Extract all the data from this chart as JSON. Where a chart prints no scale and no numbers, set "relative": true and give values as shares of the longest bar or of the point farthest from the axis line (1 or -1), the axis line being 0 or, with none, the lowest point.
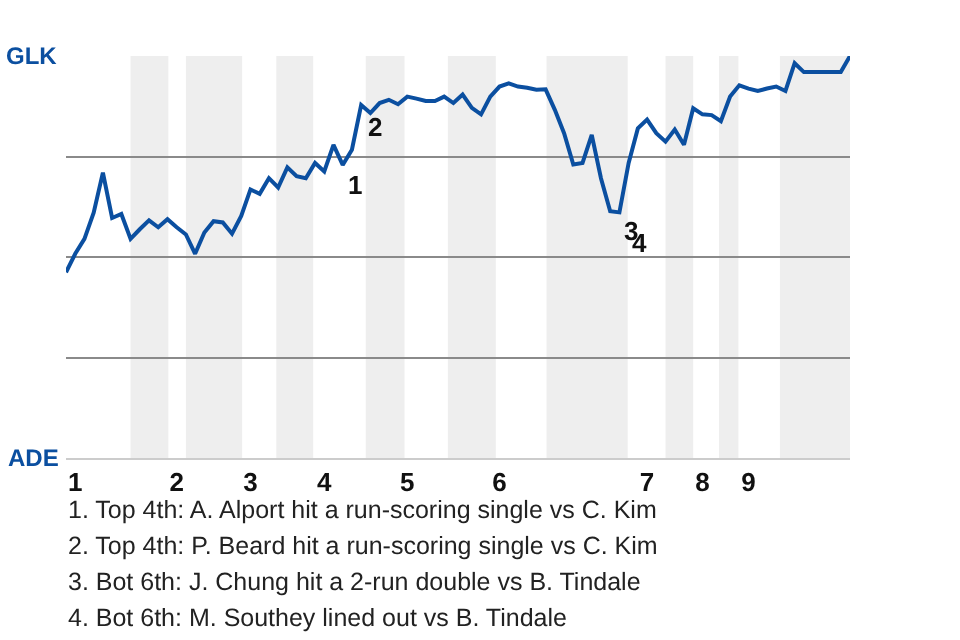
{
  "chart_data": {
    "type": "line",
    "relative": true,
    "categories": [
      null,
      "1",
      null,
      null,
      null,
      null,
      null,
      null,
      null,
      null,
      null,
      null,
      "2",
      null,
      null,
      null,
      null,
      null,
      null,
      null,
      "3",
      null,
      null,
      null,
      null,
      null,
      null,
      null,
      "4",
      null,
      null,
      null,
      null,
      null,
      null,
      null,
      null,
      "5",
      null,
      null,
      null,
      null,
      null,
      null,
      null,
      null,
      null,
      "6",
      null,
      null,
      null,
      null,
      null,
      null,
      null,
      null,
      null,
      null,
      null,
      null,
      null,
      null,
      null,
      "7",
      null,
      null,
      null,
      null,
      null,
      "8",
      null,
      null,
      null,
      null,
      "9",
      null,
      null,
      null,
      null,
      null,
      null,
      null,
      null,
      null,
      null,
      null
    ],
    "series": [
      {
        "color": "#0b4fa0",
        "values": [
          0.462,
          0.508,
          0.545,
          0.61,
          0.71,
          0.597,
          0.607,
          0.545,
          0.569,
          0.591,
          0.574,
          0.594,
          0.574,
          0.556,
          0.508,
          0.561,
          0.589,
          0.586,
          0.558,
          0.602,
          0.668,
          0.657,
          0.696,
          0.673,
          0.723,
          0.701,
          0.696,
          0.734,
          0.713,
          0.779,
          0.729,
          0.767,
          0.878,
          0.858,
          0.883,
          0.891,
          0.88,
          0.899,
          0.894,
          0.888,
          0.888,
          0.899,
          0.883,
          0.904,
          0.871,
          0.855,
          0.899,
          0.924,
          0.932,
          0.924,
          0.921,
          0.916,
          0.917,
          0.866,
          0.808,
          0.73,
          0.734,
          0.804,
          0.696,
          0.614,
          0.611,
          0.734,
          0.82,
          0.842,
          0.808,
          0.787,
          0.817,
          0.779,
          0.87,
          0.855,
          0.853,
          0.838,
          0.899,
          0.927,
          0.919,
          0.913,
          0.919,
          0.924,
          0.913,
          0.982,
          0.96,
          0.96,
          0.96,
          0.96,
          0.96,
          1
        ]
      }
    ],
    "grid": "y",
    "marker": "none",
    "line_style": "solid",
    "annotations": [
      "GLK",
      "ADE",
      {
        "text": "1",
        "y": 0.729
      },
      {
        "text": "2",
        "y": 0.878
      },
      "3",
      "4",
      "1. Top 4th: A. Alport hit a run-scoring single vs C. Kim",
      "2. Top 4th: P. Beard hit a run-scoring single vs C. Kim",
      "3. Bot 6th: J. Chung hit a 2-run double vs B. Tindale",
      "4. Bot 6th: M. Southey lined out vs B. Tindale"
    ]
  }
}
